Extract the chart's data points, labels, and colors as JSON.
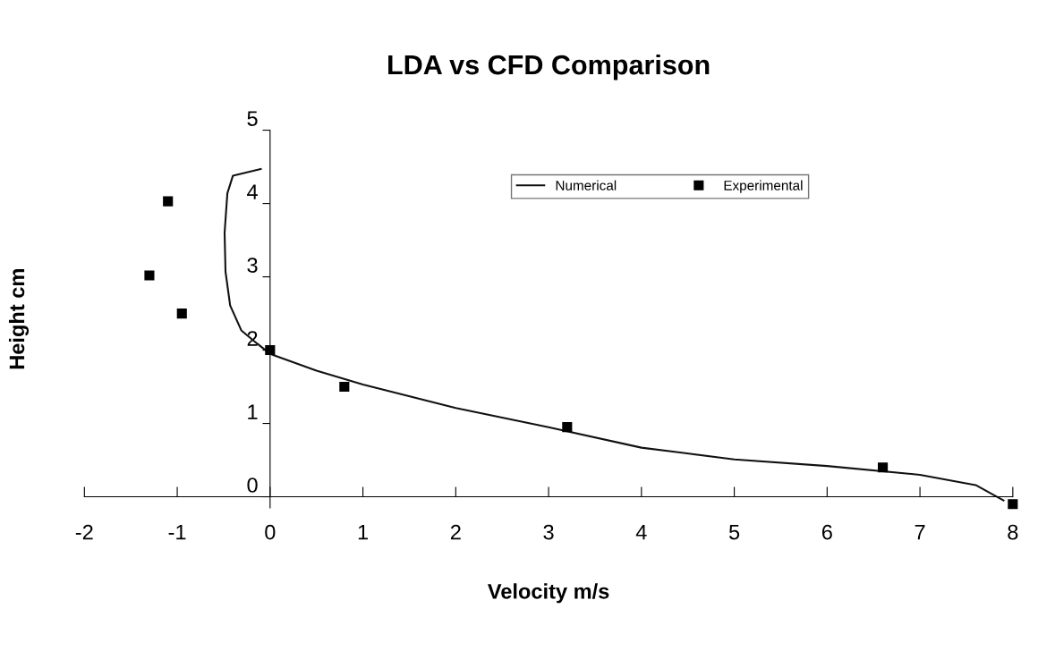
{
  "chart_data": {
    "type": "line",
    "title": "LDA vs CFD Comparison",
    "xlabel": "Velocity m/s",
    "ylabel": "Height cm",
    "xlim": [
      -2,
      8
    ],
    "xticks": [
      -2,
      -1,
      0,
      1,
      2,
      3,
      4,
      5,
      6,
      7,
      8
    ],
    "ylim": [
      -0.15,
      5
    ],
    "yticks": [
      0,
      1,
      2,
      3,
      4,
      5
    ],
    "grid": false,
    "legend": "top",
    "line_style": "solid",
    "series": [
      {
        "name": "Numerical",
        "color": "#111111",
        "marker": "none",
        "x": [
          -0.1,
          -0.4,
          -0.46,
          -0.49,
          -0.48,
          -0.43,
          -0.31,
          -0.14,
          0,
          0.5,
          1,
          2,
          3,
          4,
          5,
          6,
          7,
          7.6,
          7.9
        ],
        "values": [
          4.47,
          4.38,
          4.14,
          3.6,
          3.07,
          2.61,
          2.27,
          2.09,
          1.95,
          1.72,
          1.53,
          1.21,
          0.95,
          0.67,
          0.51,
          0.42,
          0.3,
          0.16,
          -0.05
        ]
      },
      {
        "name": "Experimental",
        "type": "scatter",
        "color": "#000000",
        "marker": "square",
        "x": [
          -1.1,
          -1.3,
          -0.95,
          0,
          0.8,
          3.2,
          6.6,
          8.0
        ],
        "values": [
          4.03,
          3.02,
          2.5,
          2.0,
          1.5,
          0.95,
          0.4,
          -0.1
        ]
      }
    ]
  }
}
